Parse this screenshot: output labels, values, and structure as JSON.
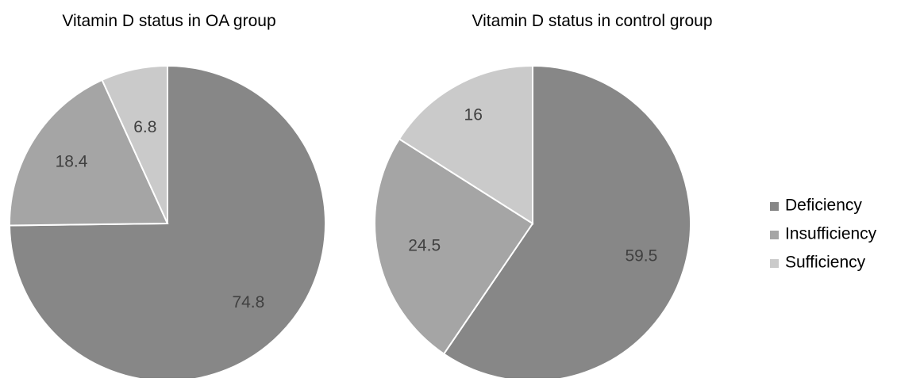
{
  "chart_data": [
    {
      "type": "pie",
      "title": "Vitamin D status in OA group",
      "categories": [
        "Deficiency",
        "Insufficiency",
        "Sufficiency"
      ],
      "values": [
        74.8,
        18.4,
        6.8
      ],
      "value_labels": [
        "74.8",
        "18.4",
        "6.8"
      ],
      "start": "12 o'clock",
      "direction": "clockwise"
    },
    {
      "type": "pie",
      "title": "Vitamin D status in control group",
      "categories": [
        "Deficiency",
        "Insufficiency",
        "Sufficiency"
      ],
      "values": [
        59.5,
        24.5,
        16
      ],
      "value_labels": [
        "59.5",
        "24.5",
        "16"
      ],
      "start": "12 o'clock",
      "direction": "clockwise"
    }
  ],
  "legend": {
    "position": "right",
    "items": [
      {
        "label": "Deficiency",
        "color": "#878787"
      },
      {
        "label": "Insufficiency",
        "color": "#a5a5a5"
      },
      {
        "label": "Sufficiency",
        "color": "#cacaca"
      }
    ]
  },
  "colors": {
    "Deficiency": "#878787",
    "Insufficiency": "#a5a5a5",
    "Sufficiency": "#cacaca",
    "slice_border": "#ffffff",
    "label_text": "#404040",
    "title_text": "#000000"
  }
}
